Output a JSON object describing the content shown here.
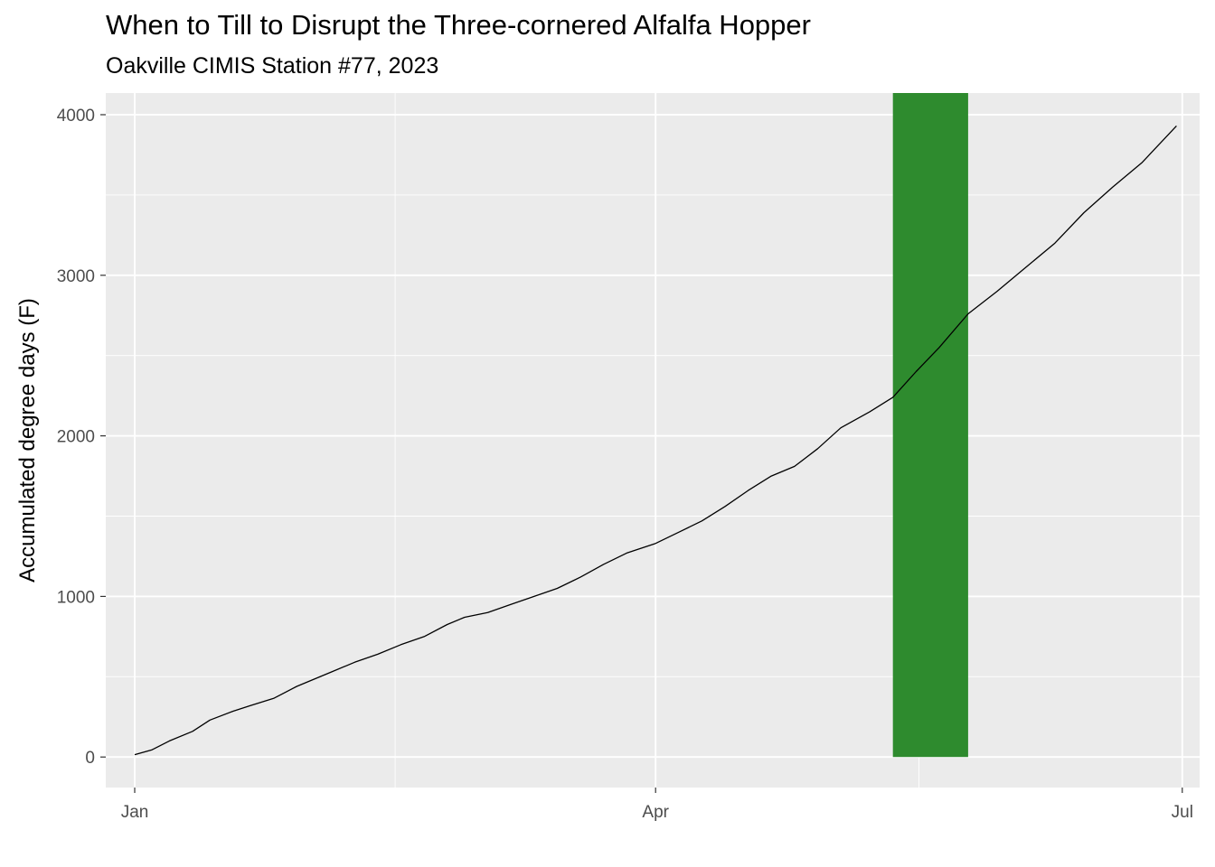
{
  "chart_data": {
    "type": "line",
    "title": "When to Till to Disrupt the Three-cornered Alfalfa Hopper",
    "subtitle": "Oakville CIMIS Station #77, 2023",
    "xlabel": "",
    "ylabel": "Accumulated degree days (F)",
    "x_axis": {
      "type": "date",
      "range": [
        "2022-12-27",
        "2023-07-04"
      ],
      "ticks": [
        {
          "date": "2023-01-01",
          "label": "Jan"
        },
        {
          "date": "2023-04-01",
          "label": "Apr"
        },
        {
          "date": "2023-07-01",
          "label": "Jul"
        }
      ]
    },
    "y_axis": {
      "range": [
        -190,
        4135
      ],
      "ticks": [
        0,
        1000,
        2000,
        3000,
        4000
      ]
    },
    "grid": true,
    "background": "#ebebeb",
    "line_color": "#000000",
    "highlight": {
      "x_start": "2023-05-12",
      "x_end": "2023-05-25",
      "y_min": 0,
      "y_max": 4135,
      "color": "#2e8b2e"
    },
    "series": [
      {
        "x": [
          "2023-01-01",
          "2023-01-04",
          "2023-01-07",
          "2023-01-11",
          "2023-01-14",
          "2023-01-18",
          "2023-01-21",
          "2023-01-25",
          "2023-01-29",
          "2023-02-01",
          "2023-02-04",
          "2023-02-08",
          "2023-02-12",
          "2023-02-16",
          "2023-02-20",
          "2023-02-24",
          "2023-02-27",
          "2023-03-03",
          "2023-03-07",
          "2023-03-11",
          "2023-03-15",
          "2023-03-19",
          "2023-03-23",
          "2023-03-27",
          "2023-04-01",
          "2023-04-05",
          "2023-04-09",
          "2023-04-13",
          "2023-04-17",
          "2023-04-21",
          "2023-04-25",
          "2023-04-29",
          "2023-05-03",
          "2023-05-08",
          "2023-05-12",
          "2023-05-16",
          "2023-05-20",
          "2023-05-25",
          "2023-05-30",
          "2023-06-04",
          "2023-06-09",
          "2023-06-14",
          "2023-06-19",
          "2023-06-24",
          "2023-06-30"
        ],
        "y": [
          15,
          45,
          100,
          160,
          230,
          285,
          320,
          365,
          440,
          485,
          530,
          590,
          640,
          700,
          750,
          825,
          870,
          900,
          950,
          1000,
          1050,
          1120,
          1200,
          1270,
          1330,
          1400,
          1470,
          1560,
          1660,
          1750,
          1810,
          1920,
          2050,
          2150,
          2240,
          2400,
          2550,
          2760,
          2900,
          3050,
          3200,
          3390,
          3550,
          3700,
          3930
        ]
      }
    ]
  }
}
